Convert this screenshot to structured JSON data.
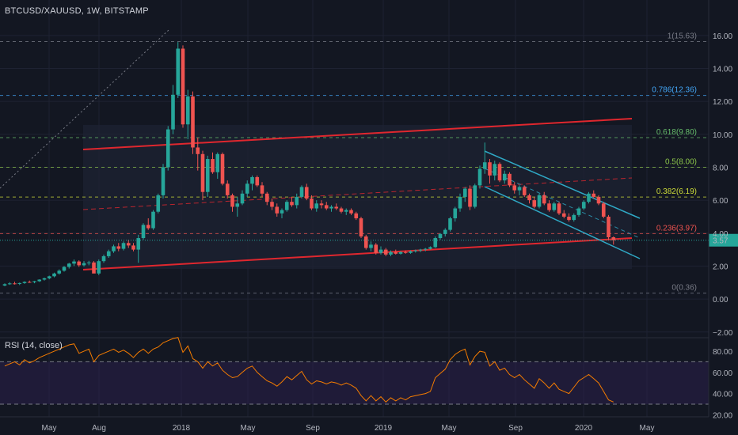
{
  "header": {
    "symbol": "BTCUSD/XAUUSD, 1W, BITSTAMP",
    "rsi_label": "RSI (14, close)"
  },
  "colors": {
    "background": "#131722",
    "up": "#26a69a",
    "down": "#ef5350",
    "channel": "#e0272e",
    "down_channel": "#2fa9c6",
    "rsi_line": "#f57c00",
    "rsi_band": "#2a1f4a",
    "price_badge": "#26a69a"
  },
  "price_badge": "3.57",
  "chart_data": [
    {
      "type": "candlestick",
      "title": "BTCUSD/XAUUSD, 1W, BITSTAMP",
      "xlabel": "",
      "ylabel": "",
      "ylim": [
        -2.3,
        17
      ],
      "y_ticks": [
        "16.00",
        "14.00",
        "12.00",
        "10.00",
        "8.00",
        "6.00",
        "4.00",
        "2.00",
        "0.00",
        "−2.00"
      ],
      "x_ticks": [
        "May",
        "Aug",
        "2018",
        "May",
        "Sep",
        "2019",
        "May",
        "Sep",
        "2020",
        "May"
      ],
      "grid": true,
      "series": [
        {
          "values": [
            [
              0.82,
              0.95,
              0.78,
              0.9
            ],
            [
              0.9,
              1.02,
              0.86,
              0.95
            ],
            [
              0.95,
              1.05,
              0.88,
              0.92
            ],
            [
              0.92,
              1.0,
              0.85,
              0.97
            ],
            [
              0.97,
              1.08,
              0.92,
              1.04
            ],
            [
              1.04,
              1.12,
              0.98,
              1.02
            ],
            [
              1.02,
              1.1,
              0.96,
              1.08
            ],
            [
              1.08,
              1.2,
              1.04,
              1.18
            ],
            [
              1.18,
              1.3,
              1.12,
              1.26
            ],
            [
              1.26,
              1.42,
              1.2,
              1.38
            ],
            [
              1.38,
              1.6,
              1.32,
              1.55
            ],
            [
              1.55,
              1.8,
              1.48,
              1.72
            ],
            [
              1.72,
              2.0,
              1.66,
              1.95
            ],
            [
              1.95,
              2.2,
              1.85,
              2.15
            ],
            [
              2.15,
              2.4,
              2.0,
              2.28
            ],
            [
              2.28,
              2.35,
              1.95,
              2.05
            ],
            [
              2.05,
              2.3,
              1.98,
              2.18
            ],
            [
              2.18,
              2.32,
              2.05,
              2.22
            ],
            [
              2.22,
              2.3,
              1.8,
              1.55
            ],
            [
              1.55,
              2.4,
              1.45,
              2.3
            ],
            [
              2.3,
              2.7,
              2.2,
              2.6
            ],
            [
              2.6,
              3.0,
              2.5,
              2.9
            ],
            [
              2.9,
              3.3,
              2.8,
              3.2
            ],
            [
              3.2,
              3.4,
              2.9,
              3.05
            ],
            [
              3.05,
              3.5,
              2.95,
              3.4
            ],
            [
              3.4,
              3.6,
              3.1,
              3.25
            ],
            [
              3.25,
              3.4,
              2.9,
              3.0
            ],
            [
              3.0,
              3.9,
              2.2,
              3.7
            ],
            [
              3.7,
              4.6,
              3.6,
              4.5
            ],
            [
              4.5,
              4.9,
              4.2,
              4.3
            ],
            [
              4.3,
              5.4,
              4.2,
              5.3
            ],
            [
              5.3,
              6.4,
              5.2,
              6.3
            ],
            [
              6.3,
              8.2,
              6.1,
              8.0
            ],
            [
              8.0,
              10.5,
              7.8,
              10.3
            ],
            [
              10.3,
              13.0,
              10.0,
              12.4
            ],
            [
              12.4,
              15.6,
              12.2,
              15.2
            ],
            [
              15.2,
              15.4,
              10.4,
              10.6
            ],
            [
              10.6,
              12.7,
              9.7,
              12.3
            ],
            [
              12.3,
              12.6,
              8.8,
              9.2
            ],
            [
              9.2,
              9.8,
              7.8,
              8.8
            ],
            [
              8.8,
              9.0,
              6.0,
              6.5
            ],
            [
              6.5,
              8.7,
              6.2,
              8.5
            ],
            [
              8.5,
              8.9,
              7.6,
              7.7
            ],
            [
              7.7,
              8.9,
              7.3,
              8.8
            ],
            [
              8.8,
              8.9,
              6.9,
              7.0
            ],
            [
              7.0,
              7.2,
              6.1,
              6.3
            ],
            [
              6.3,
              6.4,
              5.3,
              5.6
            ],
            [
              5.6,
              6.2,
              5.0,
              5.8
            ],
            [
              5.8,
              6.6,
              5.7,
              6.4
            ],
            [
              6.4,
              7.2,
              6.2,
              7.0
            ],
            [
              7.0,
              7.5,
              6.6,
              7.4
            ],
            [
              7.4,
              7.5,
              6.8,
              6.9
            ],
            [
              6.9,
              7.1,
              6.2,
              6.4
            ],
            [
              6.4,
              6.5,
              5.7,
              5.9
            ],
            [
              5.9,
              6.1,
              5.4,
              5.6
            ],
            [
              5.6,
              5.8,
              5.0,
              5.2
            ],
            [
              5.2,
              5.5,
              4.9,
              5.4
            ],
            [
              5.4,
              6.0,
              5.3,
              5.9
            ],
            [
              5.9,
              6.2,
              5.6,
              5.7
            ],
            [
              5.7,
              6.4,
              5.5,
              6.2
            ],
            [
              6.2,
              6.9,
              6.1,
              6.8
            ],
            [
              6.8,
              7.0,
              6.0,
              6.1
            ],
            [
              6.1,
              6.3,
              5.4,
              5.5
            ],
            [
              5.5,
              6.0,
              5.3,
              5.8
            ],
            [
              5.8,
              6.0,
              5.5,
              5.7
            ],
            [
              5.7,
              5.9,
              5.4,
              5.5
            ],
            [
              5.5,
              5.7,
              5.3,
              5.6
            ],
            [
              5.6,
              5.8,
              5.4,
              5.5
            ],
            [
              5.5,
              5.6,
              5.2,
              5.3
            ],
            [
              5.3,
              5.5,
              5.1,
              5.4
            ],
            [
              5.4,
              5.5,
              5.1,
              5.2
            ],
            [
              5.2,
              5.3,
              4.8,
              4.9
            ],
            [
              4.9,
              5.0,
              3.7,
              3.8
            ],
            [
              3.8,
              3.9,
              3.0,
              3.1
            ],
            [
              3.1,
              3.5,
              2.9,
              3.3
            ],
            [
              3.3,
              3.4,
              2.7,
              2.8
            ],
            [
              2.8,
              3.2,
              2.7,
              3.0
            ],
            [
              3.0,
              3.1,
              2.6,
              2.7
            ],
            [
              2.7,
              2.95,
              2.6,
              2.85
            ],
            [
              2.85,
              3.0,
              2.7,
              2.75
            ],
            [
              2.75,
              2.9,
              2.7,
              2.85
            ],
            [
              2.85,
              2.95,
              2.75,
              2.8
            ],
            [
              2.8,
              2.95,
              2.75,
              2.9
            ],
            [
              2.9,
              3.0,
              2.82,
              2.95
            ],
            [
              2.95,
              3.05,
              2.85,
              3.0
            ],
            [
              3.0,
              3.1,
              2.9,
              3.05
            ],
            [
              3.05,
              3.2,
              3.0,
              3.15
            ],
            [
              3.15,
              3.8,
              3.1,
              3.7
            ],
            [
              3.7,
              4.0,
              3.6,
              3.95
            ],
            [
              3.95,
              4.3,
              3.8,
              4.2
            ],
            [
              4.2,
              5.0,
              4.1,
              4.9
            ],
            [
              4.9,
              5.6,
              4.7,
              5.5
            ],
            [
              5.5,
              6.4,
              5.3,
              6.2
            ],
            [
              6.2,
              6.8,
              5.9,
              6.7
            ],
            [
              6.7,
              6.9,
              5.4,
              5.6
            ],
            [
              5.6,
              7.0,
              5.5,
              6.9
            ],
            [
              6.9,
              8.1,
              6.7,
              7.9
            ],
            [
              7.9,
              9.5,
              7.6,
              8.3
            ],
            [
              8.3,
              8.5,
              7.0,
              7.5
            ],
            [
              7.5,
              8.4,
              7.2,
              8.2
            ],
            [
              8.2,
              8.3,
              7.1,
              7.2
            ],
            [
              7.2,
              7.8,
              7.0,
              7.6
            ],
            [
              7.6,
              7.7,
              6.8,
              6.9
            ],
            [
              6.9,
              7.1,
              6.4,
              6.6
            ],
            [
              6.6,
              6.9,
              6.3,
              6.8
            ],
            [
              6.8,
              6.9,
              6.2,
              6.3
            ],
            [
              6.3,
              6.4,
              5.8,
              6.0
            ],
            [
              6.0,
              6.2,
              5.5,
              5.6
            ],
            [
              5.6,
              6.4,
              5.5,
              6.3
            ],
            [
              6.3,
              6.5,
              5.7,
              5.8
            ],
            [
              5.8,
              6.0,
              5.3,
              5.4
            ],
            [
              5.4,
              5.9,
              5.3,
              5.8
            ],
            [
              5.8,
              5.9,
              5.1,
              5.2
            ],
            [
              5.2,
              5.4,
              4.9,
              5.0
            ],
            [
              5.0,
              5.2,
              4.7,
              4.8
            ],
            [
              4.8,
              5.2,
              4.7,
              5.1
            ],
            [
              5.1,
              5.6,
              5.0,
              5.5
            ],
            [
              5.5,
              6.0,
              5.4,
              5.9
            ],
            [
              5.9,
              6.5,
              5.8,
              6.4
            ],
            [
              6.4,
              6.6,
              6.1,
              6.2
            ],
            [
              6.2,
              6.3,
              5.7,
              5.8
            ],
            [
              5.8,
              5.9,
              4.9,
              5.0
            ],
            [
              5.0,
              5.1,
              3.6,
              3.75
            ],
            [
              3.75,
              3.8,
              3.3,
              3.57
            ]
          ]
        }
      ],
      "fib_levels": [
        {
          "label": "1(15.63)",
          "value": 15.63,
          "color": "#787b86"
        },
        {
          "label": "0.786(12.36)",
          "value": 12.36,
          "color": "#42a5f5"
        },
        {
          "label": "0.618(9.80)",
          "value": 9.8,
          "color": "#66bb6a"
        },
        {
          "label": "0.5(8.00)",
          "value": 8.0,
          "color": "#8bc34a"
        },
        {
          "label": "0.382(6.19)",
          "value": 6.19,
          "color": "#cddc39"
        },
        {
          "label": "0.236(3.97)",
          "value": 3.97,
          "color": "#ef5350"
        },
        {
          "label": "0(0.36)",
          "value": 0.36,
          "color": "#787b86"
        }
      ]
    },
    {
      "type": "line",
      "title": "RSI (14, close)",
      "xlabel": "",
      "ylabel": "",
      "ylim": [
        18,
        92
      ],
      "y_ticks": [
        "80.00",
        "60.00",
        "40.00",
        "20.00"
      ],
      "levels": [
        70,
        30
      ],
      "series": [
        {
          "values": [
            66,
            68,
            70,
            67,
            72,
            69,
            71,
            74,
            76,
            78,
            80,
            82,
            84,
            86,
            87,
            78,
            80,
            82,
            70,
            76,
            78,
            80,
            82,
            79,
            81,
            78,
            74,
            79,
            82,
            78,
            82,
            84,
            88,
            90,
            92,
            93,
            79,
            85,
            73,
            70,
            64,
            70,
            66,
            69,
            62,
            58,
            55,
            56,
            60,
            64,
            66,
            60,
            56,
            52,
            50,
            47,
            51,
            56,
            53,
            57,
            61,
            53,
            49,
            52,
            51,
            49,
            51,
            50,
            48,
            50,
            48,
            45,
            38,
            33,
            38,
            33,
            37,
            32,
            36,
            33,
            36,
            34,
            37,
            38,
            39,
            40,
            42,
            55,
            59,
            63,
            72,
            77,
            80,
            82,
            67,
            75,
            80,
            79,
            66,
            70,
            62,
            64,
            58,
            55,
            58,
            53,
            49,
            45,
            54,
            50,
            45,
            50,
            44,
            42,
            40,
            46,
            52,
            55,
            58,
            54,
            50,
            42,
            34,
            32
          ]
        }
      ],
      "x_ticks": [
        "May",
        "Aug",
        "2018",
        "May",
        "Sep",
        "2019",
        "May",
        "Sep",
        "2020",
        "May"
      ]
    }
  ]
}
